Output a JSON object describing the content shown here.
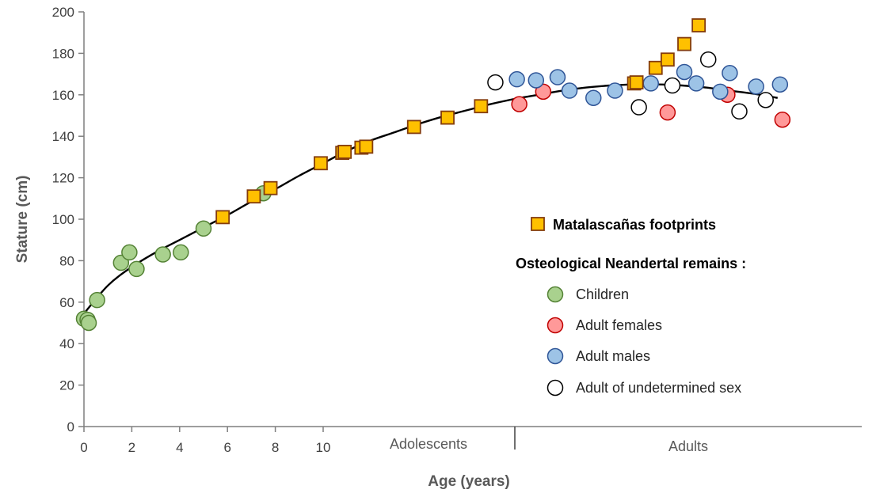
{
  "chart_data": {
    "type": "scatter",
    "title": "",
    "xlabel": "Age (years)",
    "ylabel": "Stature (cm)",
    "ylim": [
      0,
      200
    ],
    "y_ticks": [
      0,
      20,
      40,
      60,
      80,
      100,
      120,
      140,
      160,
      180,
      200
    ],
    "x_ticks": [
      "0",
      "2",
      "4",
      "6",
      "8",
      "10"
    ],
    "x_numeric_range": [
      0,
      10
    ],
    "section_labels": [
      "Adolescents",
      "Adults"
    ],
    "grid": false,
    "legend": {
      "placement": "right",
      "footprints_label": "Matalascañas footprints",
      "osteo_heading": "Osteological Neandertal remains :",
      "items": [
        {
          "key": "children",
          "label": "Children"
        },
        {
          "key": "females",
          "label": "Adult females"
        },
        {
          "key": "males",
          "label": "Adult males"
        },
        {
          "key": "undetermined",
          "label": "Adult of undetermined sex"
        }
      ]
    },
    "colors": {
      "children_fill": "#a9d18e",
      "children_stroke": "#548235",
      "females_fill": "#ff9999",
      "females_stroke": "#c00000",
      "males_fill": "#9dc3e6",
      "males_stroke": "#2f5597",
      "undetermined_fill": "#ffffff",
      "undetermined_stroke": "#000000",
      "footprint_fill": "#ffc000",
      "footprint_stroke": "#843c0c",
      "curve": "#000000"
    },
    "series": [
      {
        "name": "Matalascañas footprints",
        "marker": "square",
        "points": [
          {
            "x": 5.8,
            "y": 101
          },
          {
            "x": 7.1,
            "y": 111
          },
          {
            "x": 7.8,
            "y": 115
          },
          {
            "x": 9.9,
            "y": 127
          },
          {
            "x": 10.8,
            "y": 132
          },
          {
            "x": 10.9,
            "y": 132.5
          },
          {
            "x": 11.6,
            "y": 134.5
          },
          {
            "x": 11.8,
            "y": 135
          },
          {
            "x": 13.8,
            "y": 144.5
          },
          {
            "x": 15.2,
            "y": 149
          },
          {
            "x": 16.6,
            "y": 154.5
          },
          {
            "x": 23.0,
            "y": 165.5
          },
          {
            "x": 23.1,
            "y": 166
          },
          {
            "x": 23.9,
            "y": 173
          },
          {
            "x": 24.4,
            "y": 177
          },
          {
            "x": 25.1,
            "y": 184.5
          },
          {
            "x": 25.7,
            "y": 193.5
          }
        ]
      },
      {
        "name": "Children",
        "marker": "circle",
        "points": [
          {
            "x": 0.0,
            "y": 52
          },
          {
            "x": 0.15,
            "y": 51.5
          },
          {
            "x": 0.2,
            "y": 50
          },
          {
            "x": 0.55,
            "y": 61
          },
          {
            "x": 1.55,
            "y": 79
          },
          {
            "x": 1.9,
            "y": 84
          },
          {
            "x": 2.2,
            "y": 76
          },
          {
            "x": 3.3,
            "y": 83
          },
          {
            "x": 4.05,
            "y": 84
          },
          {
            "x": 5.0,
            "y": 95.5
          },
          {
            "x": 7.5,
            "y": 112.5
          }
        ]
      },
      {
        "name": "Adult females",
        "marker": "circle",
        "points": [
          {
            "x": 18.2,
            "y": 155.5
          },
          {
            "x": 19.2,
            "y": 161.5
          },
          {
            "x": 24.4,
            "y": 151.5
          },
          {
            "x": 26.9,
            "y": 160
          },
          {
            "x": 29.2,
            "y": 148
          }
        ]
      },
      {
        "name": "Adult males",
        "marker": "circle",
        "points": [
          {
            "x": 18.1,
            "y": 167.5
          },
          {
            "x": 18.9,
            "y": 167
          },
          {
            "x": 19.8,
            "y": 168.5
          },
          {
            "x": 20.3,
            "y": 162
          },
          {
            "x": 21.3,
            "y": 158.5
          },
          {
            "x": 22.2,
            "y": 162
          },
          {
            "x": 23.7,
            "y": 165.5
          },
          {
            "x": 25.1,
            "y": 171
          },
          {
            "x": 25.6,
            "y": 165.5
          },
          {
            "x": 26.6,
            "y": 161.5
          },
          {
            "x": 27.0,
            "y": 170.5
          },
          {
            "x": 28.1,
            "y": 164
          },
          {
            "x": 29.1,
            "y": 165
          }
        ]
      },
      {
        "name": "Adult of undetermined sex",
        "marker": "circle",
        "points": [
          {
            "x": 17.2,
            "y": 166
          },
          {
            "x": 23.2,
            "y": 154
          },
          {
            "x": 24.6,
            "y": 164.5
          },
          {
            "x": 26.1,
            "y": 177
          },
          {
            "x": 27.4,
            "y": 152
          },
          {
            "x": 28.5,
            "y": 157.5
          }
        ]
      }
    ],
    "trend_curve": {
      "points": [
        [
          0,
          54.5
        ],
        [
          1,
          68
        ],
        [
          2,
          77
        ],
        [
          3,
          84
        ],
        [
          4,
          90
        ],
        [
          5,
          96
        ],
        [
          6,
          102
        ],
        [
          7,
          108.5
        ],
        [
          8,
          114.5
        ],
        [
          9,
          121
        ],
        [
          10,
          127
        ],
        [
          11,
          133
        ],
        [
          12,
          138
        ],
        [
          13,
          142
        ],
        [
          14,
          146
        ],
        [
          15,
          149.5
        ],
        [
          16,
          152.5
        ],
        [
          17,
          155.5
        ],
        [
          18,
          158
        ],
        [
          19,
          160
        ],
        [
          20,
          162
        ],
        [
          21,
          163.5
        ],
        [
          22,
          164.5
        ],
        [
          23,
          165
        ],
        [
          24,
          165
        ],
        [
          25,
          164.5
        ],
        [
          26,
          163.5
        ],
        [
          27,
          162
        ],
        [
          28,
          160.5
        ],
        [
          29,
          158.5
        ]
      ]
    }
  }
}
